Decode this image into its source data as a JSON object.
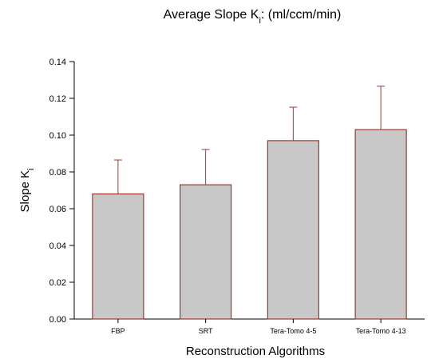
{
  "chart_data": {
    "type": "bar",
    "title": "Average Slope K",
    "title_subscript": "i",
    "title_suffix": ": (ml/ccm/min)",
    "xlabel": "Reconstruction Algorithms",
    "ylabel": "Slope K",
    "ylabel_subscript": "i",
    "categories": [
      "FBP",
      "SRT",
      "Tera-Tomo 4-5",
      "Tera-Tomo 4-13"
    ],
    "values": [
      0.068,
      0.073,
      0.097,
      0.103
    ],
    "error_upper": [
      0.0185,
      0.0192,
      0.0182,
      0.0236
    ],
    "ylim": [
      0,
      0.14
    ],
    "yticks": [
      "0.00",
      "0.02",
      "0.04",
      "0.06",
      "0.08",
      "0.10",
      "0.12",
      "0.14"
    ],
    "grid": false,
    "colors": {
      "bar_fill": "#c8c8c8",
      "bar_stroke": "#a0392c",
      "error_bar": "#a0392c",
      "axis": "#000000"
    }
  }
}
